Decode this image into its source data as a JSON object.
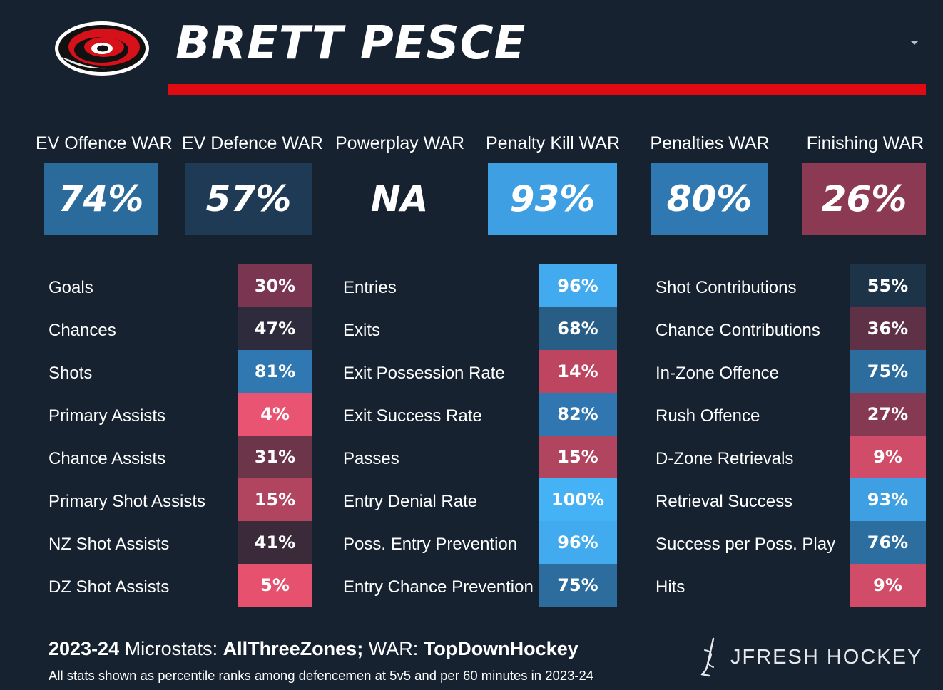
{
  "header": {
    "player_name": "BRETT PESCE",
    "logo_icon": "hurricanes-logo-icon",
    "accent_color": "#e00b12"
  },
  "war": [
    {
      "label": "EV Offence WAR",
      "value": "74%",
      "color": "#2b6b9c"
    },
    {
      "label": "EV Defence WAR",
      "value": "57%",
      "color": "#1f3a54"
    },
    {
      "label": "Powerplay WAR",
      "value": "NA",
      "color": "#162230"
    },
    {
      "label": "Penalty Kill WAR",
      "value": "93%",
      "color": "#3ea0e2"
    },
    {
      "label": "Penalties WAR",
      "value": "80%",
      "color": "#2f78b1"
    },
    {
      "label": "Finishing WAR",
      "value": "26%",
      "color": "#8c3a53"
    }
  ],
  "columns": [
    {
      "rows": [
        {
          "label": "Goals",
          "value": "30%",
          "color": "#7a3650"
        },
        {
          "label": "Chances",
          "value": "47%",
          "color": "#2e2c3c"
        },
        {
          "label": "Shots",
          "value": "81%",
          "color": "#2f78b1"
        },
        {
          "label": "Primary Assists",
          "value": "4%",
          "color": "#e85471"
        },
        {
          "label": "Chance Assists",
          "value": "31%",
          "color": "#6c3549"
        },
        {
          "label": "Primary Shot Assists",
          "value": "15%",
          "color": "#b1445f"
        },
        {
          "label": "NZ Shot Assists",
          "value": "41%",
          "color": "#3a2a3a"
        },
        {
          "label": "DZ Shot Assists",
          "value": "5%",
          "color": "#e6516e"
        }
      ]
    },
    {
      "rows": [
        {
          "label": "Entries",
          "value": "96%",
          "color": "#42aaee"
        },
        {
          "label": "Exits",
          "value": "68%",
          "color": "#285d86"
        },
        {
          "label": "Exit Possession Rate",
          "value": "14%",
          "color": "#bd4560"
        },
        {
          "label": "Exit Success Rate",
          "value": "82%",
          "color": "#3077b1"
        },
        {
          "label": "Passes",
          "value": "15%",
          "color": "#b1445f"
        },
        {
          "label": "Entry Denial Rate",
          "value": "100%",
          "color": "#46b2f6"
        },
        {
          "label": "Poss. Entry Prevention",
          "value": "96%",
          "color": "#42aaee"
        },
        {
          "label": "Entry Chance Prevention",
          "value": "75%",
          "color": "#2d6d9e"
        }
      ]
    },
    {
      "rows": [
        {
          "label": "Shot Contributions",
          "value": "55%",
          "color": "#1d3347"
        },
        {
          "label": "Chance Contributions",
          "value": "36%",
          "color": "#5e3146"
        },
        {
          "label": "In-Zone Offence",
          "value": "75%",
          "color": "#2d6d9e"
        },
        {
          "label": "Rush Offence",
          "value": "27%",
          "color": "#853952"
        },
        {
          "label": "D-Zone Retrievals",
          "value": "9%",
          "color": "#d04c68"
        },
        {
          "label": "Retrieval Success",
          "value": "93%",
          "color": "#3ea0e2"
        },
        {
          "label": "Success per Poss. Play",
          "value": "76%",
          "color": "#2c6e9f"
        },
        {
          "label": "Hits",
          "value": "9%",
          "color": "#d04c68"
        }
      ]
    }
  ],
  "footer": {
    "season": "2023-24",
    "microstats_label": "Microstats:",
    "microstats_source": "AllThreeZones;",
    "war_label": "WAR:",
    "war_source": "TopDownHockey",
    "note": "All stats shown as percentile ranks among defencemen at 5v5 and per 60 minutes in 2023-24",
    "brand": "JFRESH HOCKEY",
    "brand_icon": "jfresh-hockey-stick-icon"
  }
}
